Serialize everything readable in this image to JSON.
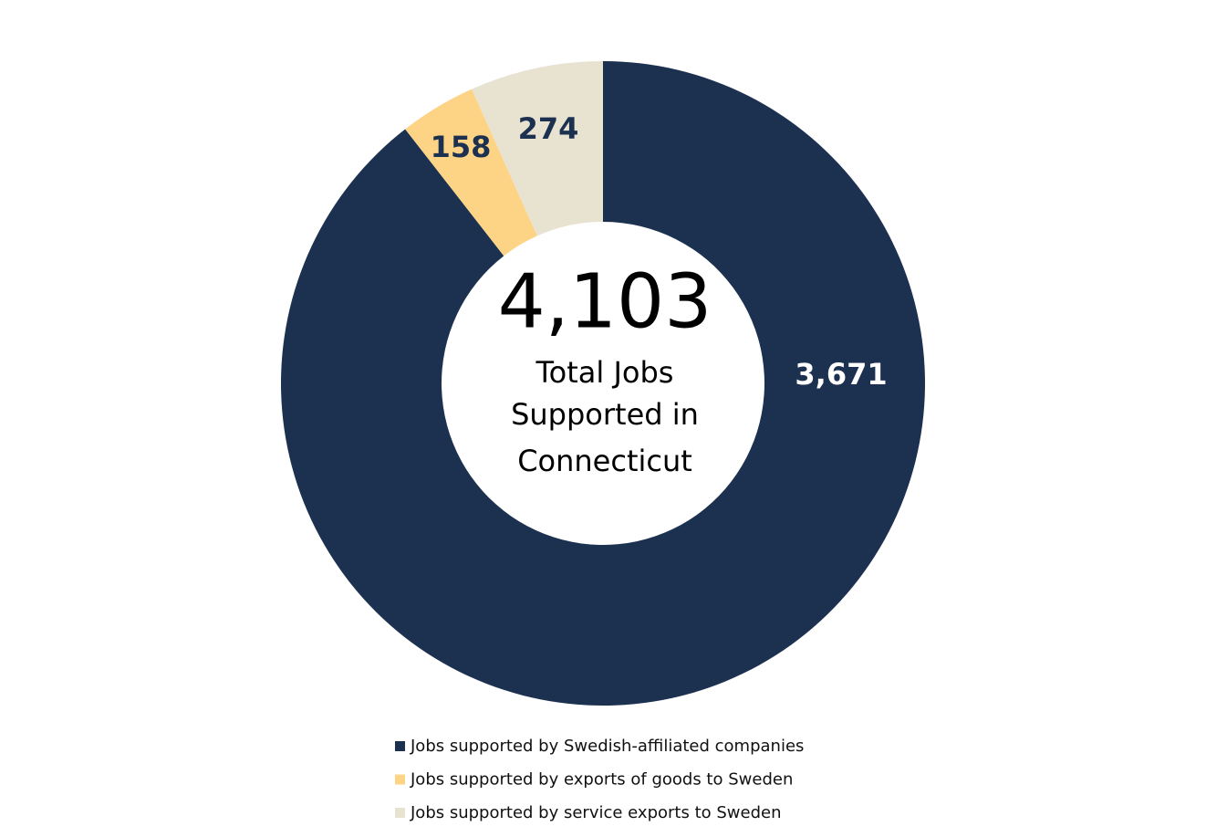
{
  "chart_data": {
    "type": "donut",
    "center_title": "4,103",
    "center_text": [
      "Total Jobs",
      "Supported in",
      "Connecticut"
    ],
    "categories": [
      "Jobs supported by Swedish-affiliated companies",
      "Jobs supported by exports of goods to Sweden",
      "Jobs supported by service exports to Sweden"
    ],
    "values": [
      3671,
      158,
      274
    ],
    "value_labels": [
      "3,671",
      "158",
      "274"
    ],
    "colors": [
      "#1c3050",
      "#fdd485",
      "#e8e2d0"
    ],
    "label_colors": [
      "#ffffff",
      "#1c3050",
      "#1c3050"
    ]
  }
}
